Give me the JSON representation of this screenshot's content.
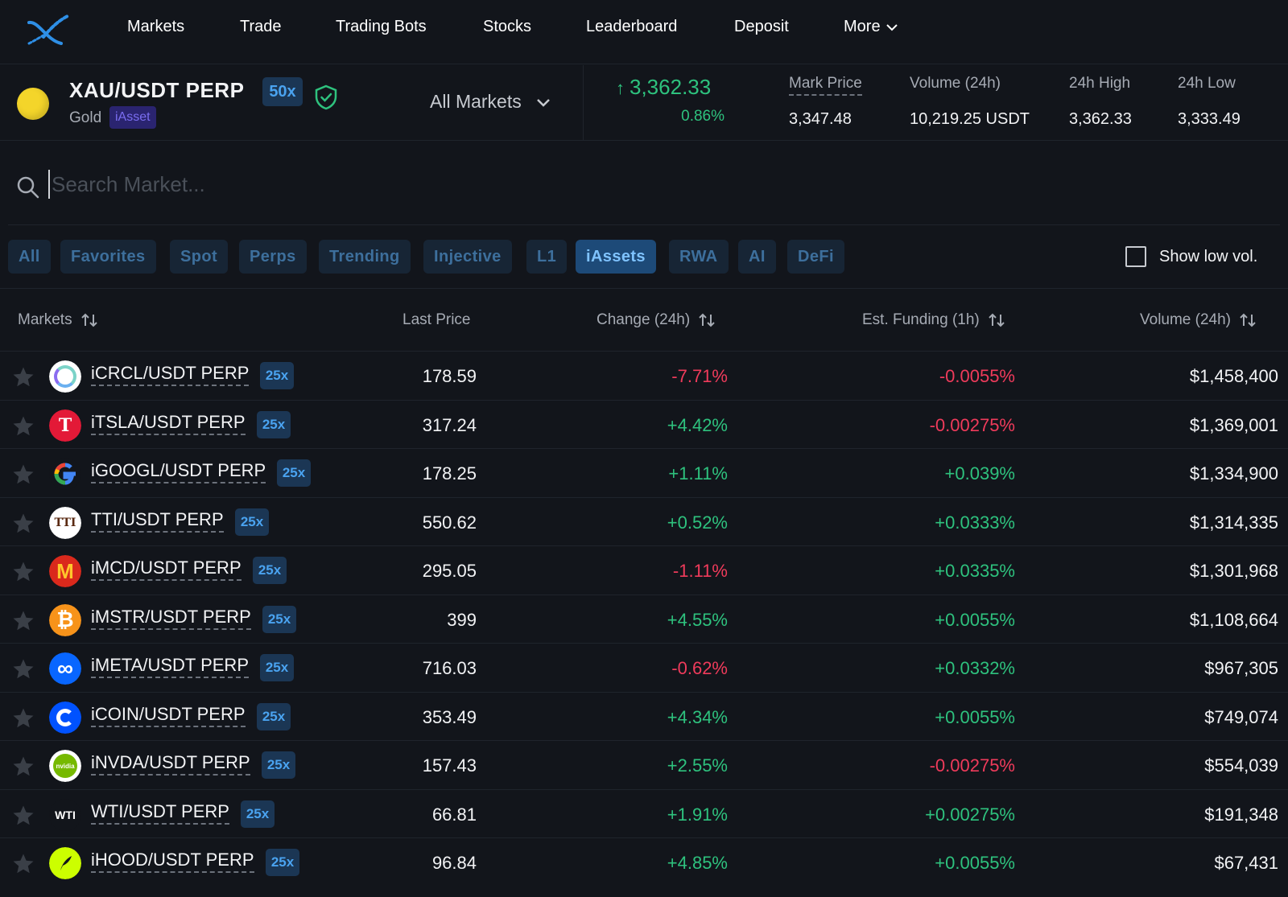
{
  "nav": {
    "items": [
      "Markets",
      "Trade",
      "Trading Bots",
      "Stocks",
      "Leaderboard",
      "Deposit"
    ],
    "more_label": "More"
  },
  "market": {
    "pair": "XAU/USDT PERP",
    "leverage": "50x",
    "name": "Gold",
    "badge": "iAsset",
    "selector": "All Markets",
    "last_price": "3,362.33",
    "change_pct": "0.86%",
    "stats": {
      "mark_label": "Mark Price",
      "mark_value": "3,347.48",
      "volume_label": "Volume (24h)",
      "volume_value": "10,219.25 USDT",
      "high_label": "24h High",
      "high_value": "3,362.33",
      "low_label": "24h Low",
      "low_value": "3,333.49"
    },
    "colors": {
      "up": "#2ec27e",
      "down": "#ef3b5b",
      "coin": "#f4d52a"
    }
  },
  "search": {
    "placeholder": "Search Market..."
  },
  "filters": {
    "tabs": [
      "All",
      "Favorites",
      "Spot",
      "Perps",
      "Trending",
      "Injective",
      "L1",
      "iAssets",
      "RWA",
      "AI",
      "DeFi"
    ],
    "active": "iAssets",
    "low_vol_label": "Show low vol."
  },
  "table": {
    "headers": {
      "markets": "Markets",
      "last_price": "Last Price",
      "change": "Change (24h)",
      "funding": "Est. Funding (1h)",
      "volume": "Volume (24h)"
    },
    "rows": [
      {
        "icon": "circle-icon",
        "name": "iCRCL/USDT PERP",
        "lev": "25x",
        "price": "178.59",
        "change": "-7.71%",
        "funding": "-0.0055%",
        "volume": "$1,458,400"
      },
      {
        "icon": "tesla-icon",
        "name": "iTSLA/USDT PERP",
        "lev": "25x",
        "price": "317.24",
        "change": "+4.42%",
        "funding": "-0.00275%",
        "volume": "$1,369,001"
      },
      {
        "icon": "google-icon",
        "name": "iGOOGL/USDT PERP",
        "lev": "25x",
        "price": "178.25",
        "change": "+1.11%",
        "funding": "+0.039%",
        "volume": "$1,334,900"
      },
      {
        "icon": "tti-icon",
        "name": "TTI/USDT PERP",
        "lev": "25x",
        "price": "550.62",
        "change": "+0.52%",
        "funding": "+0.0333%",
        "volume": "$1,314,335"
      },
      {
        "icon": "mcdonalds-icon",
        "name": "iMCD/USDT PERP",
        "lev": "25x",
        "price": "295.05",
        "change": "-1.11%",
        "funding": "+0.0335%",
        "volume": "$1,301,968"
      },
      {
        "icon": "bitcoin-icon",
        "name": "iMSTR/USDT PERP",
        "lev": "25x",
        "price": "399",
        "change": "+4.55%",
        "funding": "+0.0055%",
        "volume": "$1,108,664"
      },
      {
        "icon": "meta-icon",
        "name": "iMETA/USDT PERP",
        "lev": "25x",
        "price": "716.03",
        "change": "-0.62%",
        "funding": "+0.0332%",
        "volume": "$967,305"
      },
      {
        "icon": "coinbase-icon",
        "name": "iCOIN/USDT PERP",
        "lev": "25x",
        "price": "353.49",
        "change": "+4.34%",
        "funding": "+0.0055%",
        "volume": "$749,074"
      },
      {
        "icon": "nvidia-icon",
        "name": "iNVDA/USDT PERP",
        "lev": "25x",
        "price": "157.43",
        "change": "+2.55%",
        "funding": "-0.00275%",
        "volume": "$554,039"
      },
      {
        "icon": "wti-icon",
        "name": "WTI/USDT PERP",
        "lev": "25x",
        "price": "66.81",
        "change": "+1.91%",
        "funding": "+0.00275%",
        "volume": "$191,348"
      },
      {
        "icon": "robinhood-icon",
        "name": "iHOOD/USDT PERP",
        "lev": "25x",
        "price": "96.84",
        "change": "+4.85%",
        "funding": "+0.0055%",
        "volume": "$67,431"
      }
    ]
  }
}
